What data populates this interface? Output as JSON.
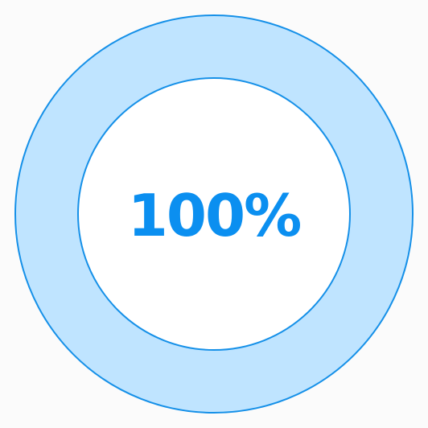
{
  "progress": {
    "value": 100,
    "label": "100%"
  },
  "colors": {
    "background": "#fbfbfb",
    "ring_fill": "#bfe4ff",
    "ring_stroke": "#1590e8",
    "text": "#0b8ff0",
    "center": "#ffffff"
  }
}
